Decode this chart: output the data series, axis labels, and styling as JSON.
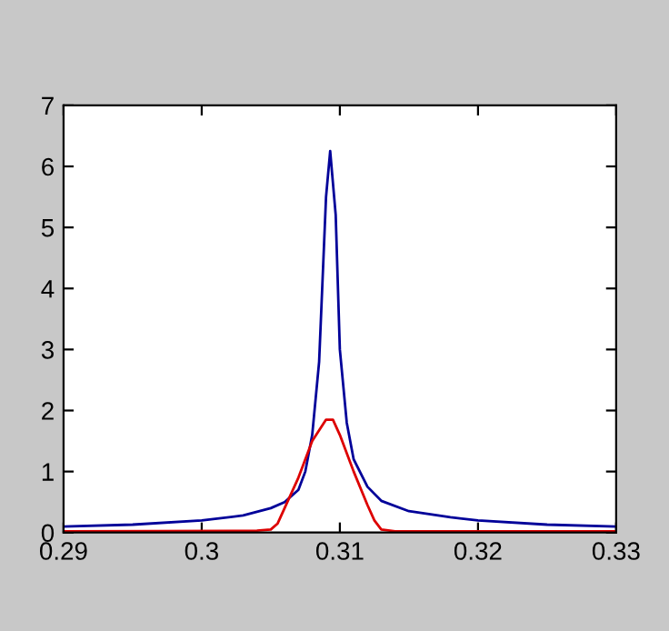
{
  "chart_data": {
    "type": "line",
    "xlim": [
      0.29,
      0.33
    ],
    "ylim": [
      0,
      7
    ],
    "xticks": [
      {
        "value": 0.29,
        "label": "0.29"
      },
      {
        "value": 0.3,
        "label": "0.3"
      },
      {
        "value": 0.31,
        "label": "0.31"
      },
      {
        "value": 0.32,
        "label": "0.32"
      },
      {
        "value": 0.33,
        "label": "0.33"
      }
    ],
    "yticks": [
      0,
      1,
      2,
      3,
      4,
      5,
      6,
      7
    ],
    "grid": false,
    "legend": false,
    "marker": "none",
    "line_style": "solid",
    "series": [
      {
        "color": "#000099",
        "x": [
          0.29,
          0.295,
          0.3,
          0.303,
          0.305,
          0.306,
          0.307,
          0.3075,
          0.308,
          0.3085,
          0.309,
          0.3093,
          0.3097,
          0.31,
          0.3105,
          0.311,
          0.312,
          0.313,
          0.315,
          0.318,
          0.32,
          0.325,
          0.33
        ],
        "values": [
          0.1,
          0.13,
          0.2,
          0.28,
          0.4,
          0.5,
          0.7,
          1.0,
          1.6,
          2.8,
          5.5,
          6.25,
          5.2,
          3.0,
          1.8,
          1.2,
          0.75,
          0.52,
          0.35,
          0.25,
          0.2,
          0.13,
          0.1
        ]
      },
      {
        "color": "#dd0000",
        "x": [
          0.29,
          0.304,
          0.305,
          0.3055,
          0.306,
          0.307,
          0.308,
          0.309,
          0.3095,
          0.31,
          0.311,
          0.312,
          0.3125,
          0.313,
          0.314,
          0.33
        ],
        "values": [
          0.02,
          0.03,
          0.05,
          0.15,
          0.4,
          0.9,
          1.5,
          1.85,
          1.85,
          1.6,
          1.0,
          0.45,
          0.2,
          0.05,
          0.02,
          0.02
        ]
      }
    ]
  }
}
